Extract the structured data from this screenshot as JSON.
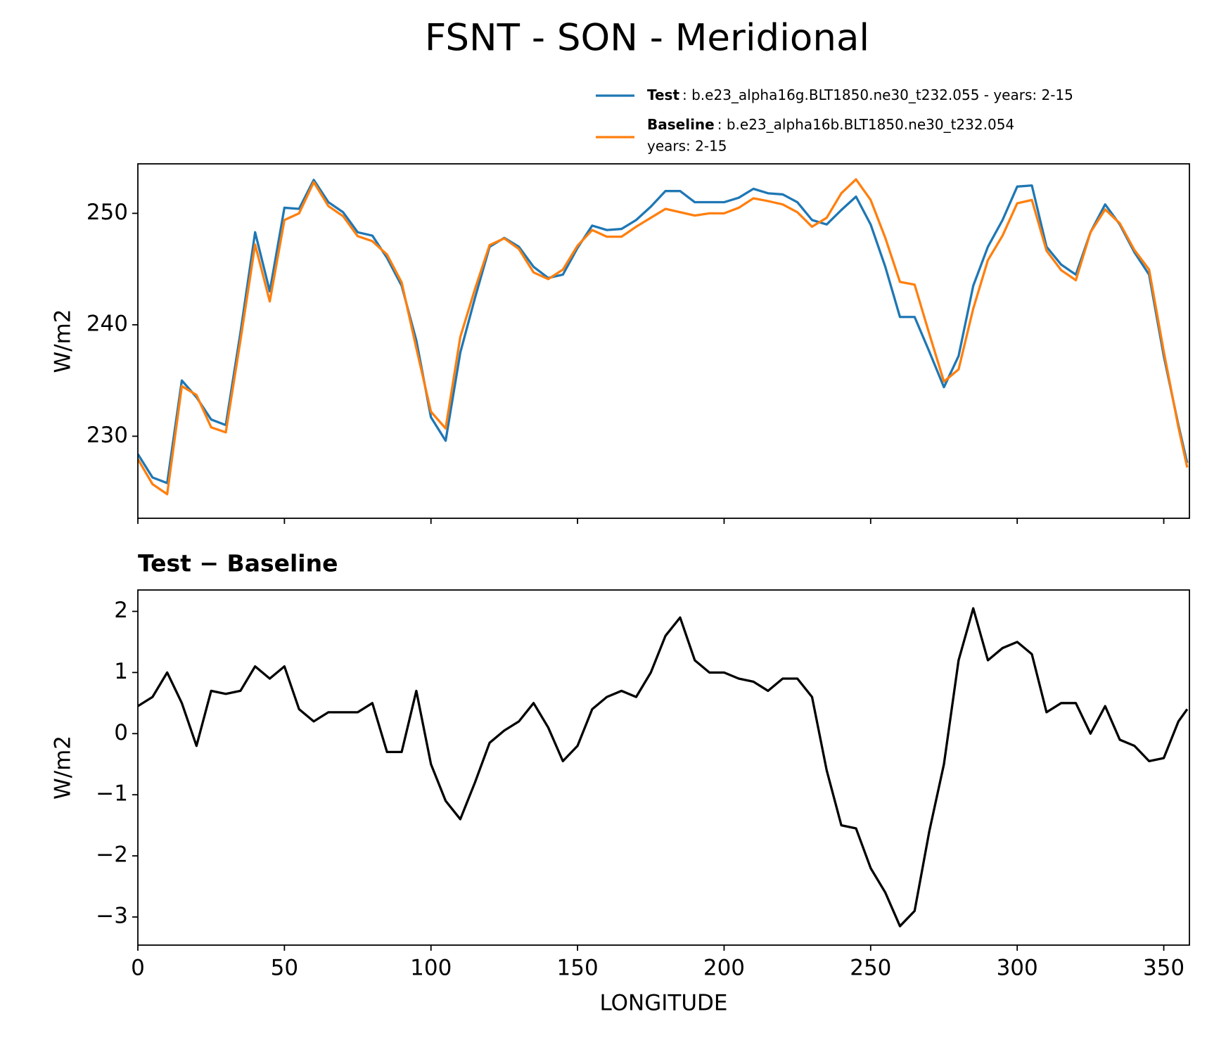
{
  "chart_data": [
    {
      "type": "line",
      "title": "FSNT - SON - Meridional",
      "ylabel": "W/m2",
      "x": [
        0,
        5,
        10,
        15,
        20,
        25,
        30,
        35,
        40,
        45,
        50,
        55,
        60,
        65,
        70,
        75,
        80,
        85,
        90,
        95,
        100,
        105,
        110,
        115,
        120,
        125,
        130,
        135,
        140,
        145,
        150,
        155,
        160,
        165,
        170,
        175,
        180,
        185,
        190,
        195,
        200,
        205,
        210,
        215,
        220,
        225,
        230,
        235,
        240,
        245,
        250,
        255,
        260,
        265,
        270,
        275,
        280,
        285,
        290,
        295,
        300,
        305,
        310,
        315,
        320,
        325,
        330,
        335,
        340,
        345,
        350,
        355,
        358
      ],
      "series": [
        {
          "name": "Test",
          "description": [
            ": b.e23_alpha16g.BLT1850.ne30_t232.055 - years: 2-15"
          ],
          "color": "#1f77b4",
          "values": [
            228.4,
            226.3,
            225.8,
            235,
            233.5,
            231.5,
            231,
            239.3,
            248.3,
            243,
            250.5,
            250.4,
            253,
            251,
            250.1,
            248.3,
            248,
            246,
            243.5,
            238.6,
            231.7,
            229.6,
            237.5,
            242.4,
            247,
            247.8,
            247,
            245.2,
            244.2,
            244.5,
            246.9,
            248.9,
            248.5,
            248.6,
            249.4,
            250.6,
            252,
            252,
            251,
            251,
            251,
            251.4,
            252.2,
            251.8,
            251.7,
            251,
            249.4,
            249,
            250.3,
            251.5,
            249,
            245.2,
            240.7,
            240.7,
            237.6,
            234.4,
            237.2,
            243.5,
            247,
            249.4,
            252.4,
            252.5,
            247,
            245.4,
            244.5,
            248.3,
            250.8,
            249,
            246.5,
            244.5,
            237.2,
            231,
            227.6
          ]
        },
        {
          "name": "Baseline",
          "description": [
            ": b.e23_alpha16b.BLT1850.ne30_t232.054",
            "years: 2-15"
          ],
          "color": "#ff7f0e",
          "values": [
            227.95,
            225.7,
            224.8,
            234.5,
            233.7,
            230.8,
            230.35,
            238.6,
            247.2,
            242.1,
            249.4,
            250,
            252.8,
            250.65,
            249.75,
            247.95,
            247.5,
            246.3,
            243.8,
            237.9,
            232.2,
            230.7,
            238.9,
            243.2,
            247.15,
            247.75,
            246.8,
            244.7,
            244.1,
            244.95,
            247.1,
            248.5,
            247.9,
            247.9,
            248.8,
            249.6,
            250.4,
            250.1,
            249.8,
            250,
            250,
            250.5,
            251.35,
            251.1,
            250.8,
            250.1,
            248.8,
            249.6,
            251.8,
            253.05,
            251.2,
            247.8,
            243.85,
            243.6,
            239.2,
            234.9,
            236,
            241.45,
            245.8,
            248,
            250.9,
            251.2,
            246.65,
            244.9,
            244,
            248.3,
            250.35,
            249.1,
            246.7,
            244.95,
            237.6,
            230.8,
            227.2
          ]
        }
      ],
      "xlim": [
        0,
        358.75
      ],
      "xticks": [
        0,
        50,
        100,
        150,
        200,
        250,
        300,
        350
      ],
      "show_xtick_labels": false,
      "ylim": [
        222.64,
        254.44
      ],
      "yticks": [
        230,
        240,
        250
      ],
      "legend": "upper right"
    },
    {
      "type": "line",
      "title": "Test − Baseline",
      "ylabel": "W/m2",
      "xlabel": "LONGITUDE",
      "x": [
        0,
        5,
        10,
        15,
        20,
        25,
        30,
        35,
        40,
        45,
        50,
        55,
        60,
        65,
        70,
        75,
        80,
        85,
        90,
        95,
        100,
        105,
        110,
        115,
        120,
        125,
        130,
        135,
        140,
        145,
        150,
        155,
        160,
        165,
        170,
        175,
        180,
        185,
        190,
        195,
        200,
        205,
        210,
        215,
        220,
        225,
        230,
        235,
        240,
        245,
        250,
        255,
        260,
        265,
        270,
        275,
        280,
        285,
        290,
        295,
        300,
        305,
        310,
        315,
        320,
        325,
        330,
        335,
        340,
        345,
        350,
        355,
        358
      ],
      "series": [
        {
          "color": "#000000",
          "values": [
            0.45,
            0.6,
            1.0,
            0.5,
            -0.2,
            0.7,
            0.65,
            0.7,
            1.1,
            0.9,
            1.1,
            0.4,
            0.2,
            0.35,
            0.35,
            0.35,
            0.5,
            -0.3,
            -0.3,
            0.7,
            -0.5,
            -1.1,
            -1.4,
            -0.8,
            -0.15,
            0.05,
            0.2,
            0.5,
            0.1,
            -0.45,
            -0.2,
            0.4,
            0.6,
            0.7,
            0.6,
            1.0,
            1.6,
            1.9,
            1.2,
            1.0,
            1.0,
            0.9,
            0.85,
            0.7,
            0.9,
            0.9,
            0.6,
            -0.6,
            -1.5,
            -1.55,
            -2.2,
            -2.6,
            -3.15,
            -2.9,
            -1.6,
            -0.5,
            1.2,
            2.05,
            1.2,
            1.4,
            1.5,
            1.3,
            0.35,
            0.5,
            0.5,
            0.0,
            0.45,
            -0.1,
            -0.2,
            -0.45,
            -0.4,
            0.2,
            0.4
          ]
        }
      ],
      "xlim": [
        0,
        358.75
      ],
      "xticks": [
        0,
        50,
        100,
        150,
        200,
        250,
        300,
        350
      ],
      "show_xtick_labels": true,
      "ylim": [
        -3.46,
        2.35
      ],
      "yticks": [
        {
          "value": -3,
          "label": "−3"
        },
        {
          "value": -2,
          "label": "−2"
        },
        {
          "value": -1,
          "label": "−1"
        },
        0,
        1,
        2
      ]
    }
  ]
}
